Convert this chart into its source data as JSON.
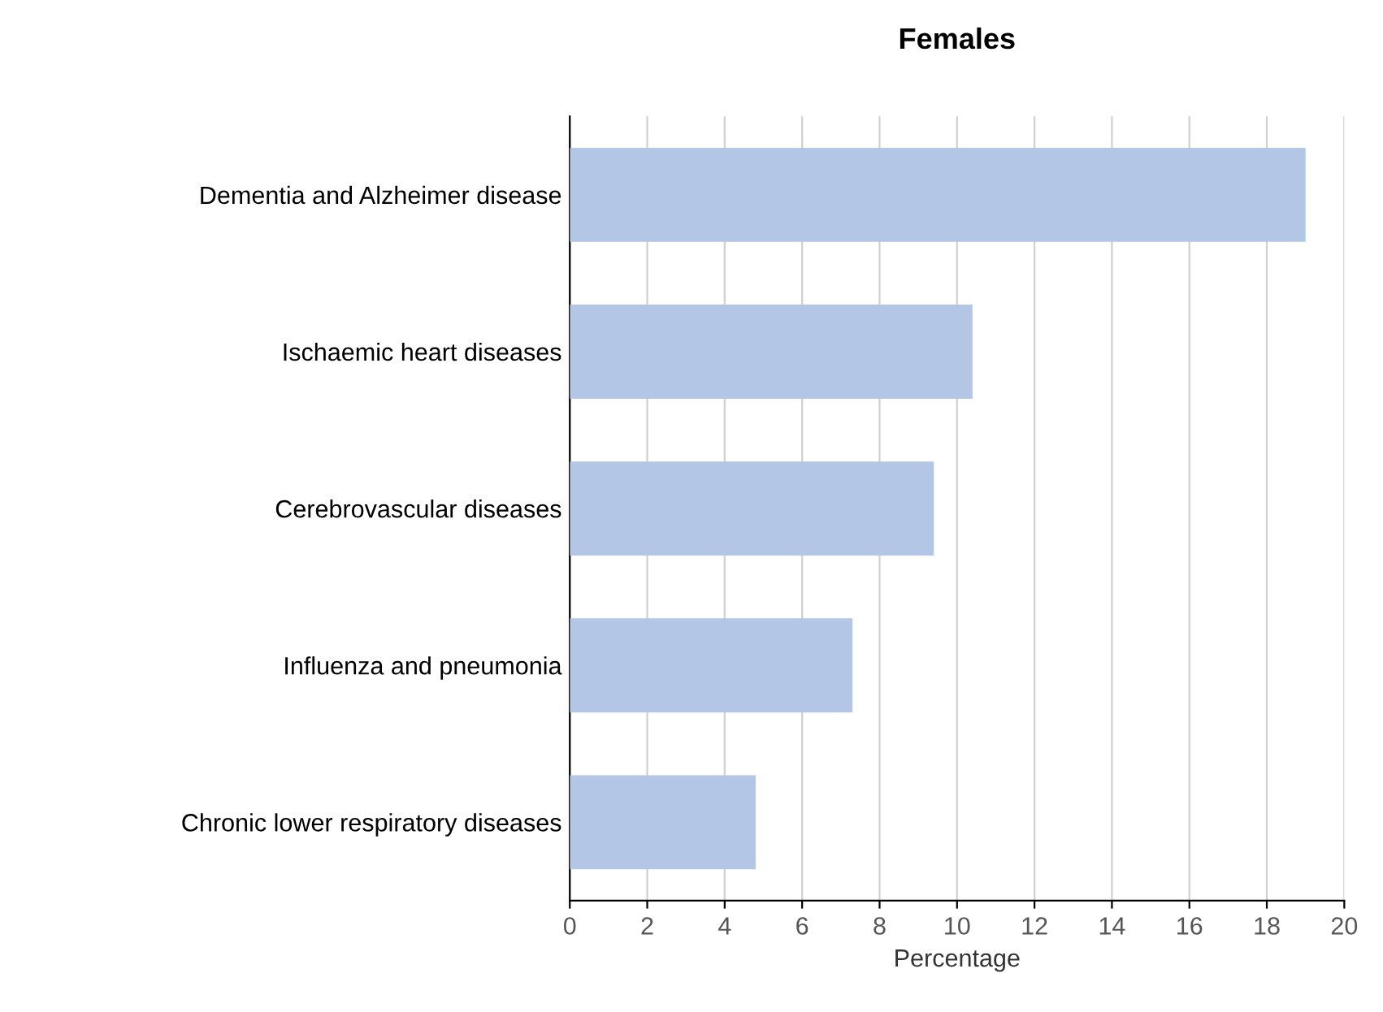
{
  "chart_data": {
    "type": "bar",
    "orientation": "horizontal",
    "title": "Females",
    "xlabel": "Percentage",
    "categories": [
      "Dementia and Alzheimer disease",
      "Ischaemic heart diseases",
      "Cerebrovascular diseases",
      "Influenza and pneumonia",
      "Chronic lower respiratory diseases"
    ],
    "values": [
      19.0,
      10.4,
      9.4,
      7.3,
      4.8
    ],
    "color": "#b3c6e6",
    "xlim": [
      0,
      20
    ],
    "xticks": [
      0,
      2,
      4,
      6,
      8,
      10,
      12,
      14,
      16,
      18,
      20
    ],
    "grid": "x"
  }
}
